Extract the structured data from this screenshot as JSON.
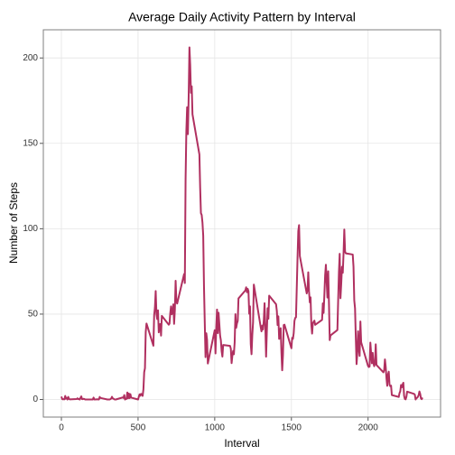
{
  "chart_data": {
    "type": "line",
    "title": "Average Daily Activity Pattern by Interval",
    "x_label": "Interval",
    "y_label": "Number of Steps",
    "x": [
      0,
      5,
      10,
      15,
      20,
      25,
      30,
      35,
      40,
      45,
      50,
      55,
      100,
      105,
      110,
      115,
      120,
      125,
      130,
      135,
      140,
      145,
      150,
      155,
      200,
      205,
      210,
      215,
      220,
      225,
      230,
      235,
      240,
      245,
      250,
      255,
      300,
      305,
      310,
      315,
      320,
      325,
      330,
      335,
      340,
      345,
      350,
      355,
      400,
      405,
      410,
      415,
      420,
      425,
      430,
      435,
      440,
      445,
      450,
      455,
      500,
      505,
      510,
      515,
      520,
      525,
      530,
      535,
      540,
      545,
      550,
      555,
      600,
      605,
      610,
      615,
      620,
      625,
      630,
      635,
      640,
      645,
      650,
      655,
      700,
      705,
      710,
      715,
      720,
      725,
      730,
      735,
      740,
      745,
      750,
      755,
      800,
      805,
      810,
      815,
      820,
      825,
      830,
      835,
      840,
      845,
      850,
      855,
      900,
      905,
      910,
      915,
      920,
      925,
      930,
      935,
      940,
      945,
      950,
      955,
      1000,
      1005,
      1010,
      1015,
      1020,
      1025,
      1030,
      1035,
      1040,
      1045,
      1050,
      1055,
      1100,
      1105,
      1110,
      1115,
      1120,
      1125,
      1130,
      1135,
      1140,
      1145,
      1150,
      1155,
      1200,
      1205,
      1210,
      1215,
      1220,
      1225,
      1230,
      1235,
      1240,
      1245,
      1250,
      1255,
      1300,
      1305,
      1310,
      1315,
      1320,
      1325,
      1330,
      1335,
      1340,
      1345,
      1350,
      1355,
      1400,
      1405,
      1410,
      1415,
      1420,
      1425,
      1430,
      1435,
      1440,
      1445,
      1450,
      1455,
      1500,
      1505,
      1510,
      1515,
      1520,
      1525,
      1530,
      1535,
      1540,
      1545,
      1550,
      1555,
      1600,
      1605,
      1610,
      1615,
      1620,
      1625,
      1630,
      1635,
      1640,
      1645,
      1650,
      1655,
      1700,
      1705,
      1710,
      1715,
      1720,
      1725,
      1730,
      1735,
      1740,
      1745,
      1750,
      1755,
      1800,
      1805,
      1810,
      1815,
      1820,
      1825,
      1830,
      1835,
      1840,
      1845,
      1850,
      1855,
      1900,
      1905,
      1910,
      1915,
      1920,
      1925,
      1930,
      1935,
      1940,
      1945,
      1950,
      1955,
      2000,
      2005,
      2010,
      2015,
      2020,
      2025,
      2030,
      2035,
      2040,
      2045,
      2050,
      2055,
      2100,
      2105,
      2110,
      2115,
      2120,
      2125,
      2130,
      2135,
      2140,
      2145,
      2150,
      2155,
      2200,
      2205,
      2210,
      2215,
      2220,
      2225,
      2230,
      2235,
      2240,
      2245,
      2250,
      2255,
      2300,
      2305,
      2310,
      2315,
      2320,
      2325,
      2330,
      2335,
      2340,
      2345,
      2350,
      2355
    ],
    "series": [
      {
        "color": "#b03060",
        "values": [
          1.7,
          0.3,
          0.1,
          0.2,
          0.1,
          2.1,
          0.5,
          0.9,
          0,
          1.5,
          0.3,
          0.1,
          0.3,
          0.7,
          0.2,
          0.3,
          0,
          1.1,
          1.8,
          0.2,
          0.2,
          0.4,
          0.3,
          0,
          0,
          0,
          1.1,
          0,
          0,
          0.1,
          0,
          0.2,
          0,
          0,
          1.5,
          0.9,
          0,
          0,
          0,
          0,
          0.2,
          0.6,
          1.6,
          0.6,
          0.5,
          0.1,
          0,
          0,
          1.2,
          0.9,
          2.6,
          0,
          0.3,
          0.4,
          4.1,
          0.7,
          3.5,
          0.8,
          3.1,
          1.1,
          0,
          1.6,
          3,
          2.2,
          3.3,
          3,
          2.1,
          6,
          16,
          18.3,
          39.5,
          44.5,
          31.5,
          49.3,
          53.8,
          63.5,
          50,
          47.1,
          52.2,
          39.3,
          44,
          44.2,
          37.4,
          49,
          43.8,
          44.4,
          50.5,
          54.5,
          49.9,
          51,
          55.7,
          44.3,
          52.3,
          69.5,
          57.8,
          56.2,
          73.4,
          68.2,
          129.4,
          157.5,
          171.2,
          155.4,
          177.3,
          206.2,
          195.9,
          179.6,
          183.4,
          167,
          143.5,
          124,
          109.1,
          108.1,
          103.7,
          95.9,
          66.2,
          45.2,
          24.8,
          38.8,
          35,
          21.1,
          40.6,
          27,
          42.4,
          52.7,
          38.9,
          50.8,
          44.3,
          37.4,
          34.7,
          28.3,
          25.1,
          31.9,
          31.4,
          29.7,
          21.3,
          25.5,
          28.4,
          26.5,
          33.4,
          50,
          42,
          44.6,
          46,
          59.2,
          63.9,
          65.7,
          62.8,
          64.8,
          63.4,
          50.2,
          54.5,
          32.4,
          26.5,
          37.7,
          45.1,
          67.3,
          42.3,
          39.9,
          43.3,
          41,
          46.2,
          56.4,
          42.8,
          25.1,
          40,
          53.5,
          47.3,
          60.8,
          55.8,
          51.9,
          43.6,
          48.7,
          35.5,
          37.5,
          41.8,
          27.5,
          17.1,
          26.1,
          43.6,
          43.8,
          30,
          36.1,
          35.5,
          38.8,
          46,
          47.8,
          48.1,
          65.3,
          82.9,
          98.7,
          102.1,
          84,
          62.1,
          64.1,
          74.5,
          63.2,
          56.9,
          59.8,
          43.9,
          38.6,
          44.7,
          45.5,
          46.2,
          43.7,
          46.6,
          56.3,
          50.7,
          61.2,
          72.7,
          78.9,
          68.9,
          59.7,
          75.1,
          56.5,
          34.8,
          37.5,
          40.7,
          58,
          74.7,
          85.3,
          59.3,
          67.8,
          77.7,
          74.2,
          85.3,
          99.5,
          86.6,
          85.6,
          84.9,
          77.8,
          58,
          53.4,
          36.3,
          20.7,
          27.4,
          40,
          30.2,
          25.5,
          45.7,
          33.5,
          19.6,
          19,
          19.3,
          33.3,
          26.8,
          21.2,
          27.3,
          21.3,
          19.5,
          21.3,
          32.3,
          20.2,
          15.9,
          17.2,
          23.5,
          19.2,
          12.5,
          8,
          14.7,
          16.3,
          8.7,
          7.8,
          8.1,
          2.6,
          1.5,
          3.7,
          4.8,
          8.5,
          7.1,
          8.7,
          9.8,
          2.2,
          0.3,
          0.1,
          1.6,
          4.6,
          3.3,
          2.8,
          0,
          0.8,
          1,
          1.6,
          2.6,
          4.7,
          3.3,
          0.6,
          0.2,
          1.1
        ]
      }
    ],
    "xlim": [
      -117.75,
      2472.75
    ],
    "xticks": [
      0,
      500,
      1000,
      1500,
      2000
    ],
    "ylim": [
      -10.3,
      216.5
    ],
    "yticks": [
      0,
      50,
      100,
      150,
      200
    ],
    "grid": true
  }
}
